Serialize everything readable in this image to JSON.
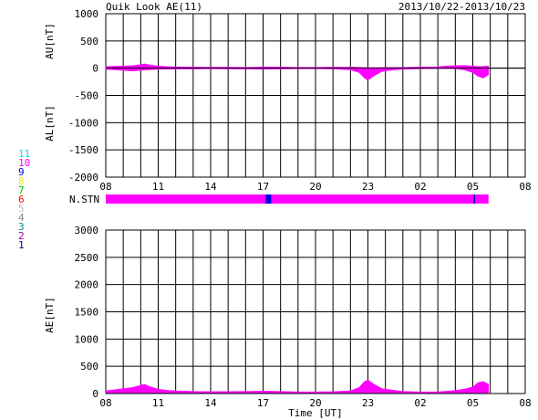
{
  "header": {
    "title": "Quik Look AE(11)",
    "date_range": "2013/10/22-2013/10/23"
  },
  "station_panel": {
    "label": "N.STN"
  },
  "legend": [
    {
      "label": "11",
      "color": "#00e5e5"
    },
    {
      "label": "10",
      "color": "#ff00ff"
    },
    {
      "label": "9",
      "color": "#0000e0"
    },
    {
      "label": "8",
      "color": "#e8e800"
    },
    {
      "label": "7",
      "color": "#00c800"
    },
    {
      "label": "6",
      "color": "#ff0000"
    },
    {
      "label": "5",
      "color": "#bbbbbb"
    },
    {
      "label": "4",
      "color": "#888888"
    },
    {
      "label": "3",
      "color": "#008b8b"
    },
    {
      "label": "2",
      "color": "#a000a0"
    },
    {
      "label": "1",
      "color": "#0000a0"
    }
  ],
  "chart_data": [
    {
      "type": "area",
      "title": "",
      "ylabel_top": "AU[nT]",
      "ylabel_bottom": "AL[nT]",
      "xlabel": "",
      "x_tick_labels": [
        "08",
        "11",
        "14",
        "17",
        "20",
        "23",
        "02",
        "05",
        "08"
      ],
      "ylim": [
        -2000,
        1000
      ],
      "y_ticks": [
        1000,
        500,
        0,
        -500,
        -1000,
        -1500,
        -2000
      ],
      "grid": true,
      "x_range_hours": [
        0,
        24
      ],
      "data_end_hour": 21.9,
      "series": [
        {
          "name": "AU",
          "color": "#ff00ff",
          "x": [
            0,
            0.5,
            1,
            1.5,
            2,
            2.2,
            2.5,
            3,
            3.5,
            4,
            5,
            6,
            7,
            8,
            9,
            10,
            11,
            12,
            13,
            14,
            15,
            16,
            17,
            18,
            19,
            19.5,
            20,
            20.5,
            21,
            21.4,
            21.9
          ],
          "values": [
            30,
            35,
            40,
            45,
            65,
            80,
            60,
            40,
            30,
            25,
            20,
            18,
            18,
            15,
            20,
            20,
            15,
            15,
            18,
            20,
            10,
            12,
            15,
            20,
            25,
            40,
            45,
            50,
            40,
            30,
            40
          ]
        },
        {
          "name": "AL",
          "color": "#ff00ff",
          "x": [
            0,
            0.5,
            1,
            1.5,
            2,
            2.5,
            3,
            3.5,
            4,
            5,
            6,
            7,
            8,
            9,
            10,
            11,
            12,
            13,
            14,
            14.5,
            14.8,
            15,
            15.3,
            15.8,
            16.5,
            17,
            18,
            19,
            20,
            20.5,
            21,
            21.3,
            21.6,
            21.9
          ],
          "values": [
            -20,
            -30,
            -40,
            -50,
            -40,
            -30,
            -20,
            -20,
            -15,
            -15,
            -12,
            -15,
            -15,
            -20,
            -15,
            -10,
            -10,
            -15,
            -30,
            -80,
            -180,
            -220,
            -150,
            -60,
            -30,
            -20,
            -10,
            -5,
            -10,
            -30,
            -80,
            -150,
            -180,
            -120
          ]
        }
      ]
    },
    {
      "type": "area",
      "title": "",
      "ylabel": "AE[nT]",
      "xlabel": "Time [UT]",
      "x_tick_labels": [
        "08",
        "11",
        "14",
        "17",
        "20",
        "23",
        "02",
        "05",
        "08"
      ],
      "ylim": [
        0,
        3000
      ],
      "y_ticks": [
        3000,
        2500,
        2000,
        1500,
        1000,
        500,
        0
      ],
      "grid": true,
      "x_range_hours": [
        0,
        24
      ],
      "data_end_hour": 21.9,
      "series": [
        {
          "name": "AE",
          "color": "#ff00ff",
          "x": [
            0,
            0.5,
            1,
            1.5,
            2,
            2.2,
            2.5,
            3,
            3.5,
            4,
            5,
            6,
            7,
            8,
            9,
            10,
            11,
            12,
            13,
            14,
            14.5,
            14.8,
            15,
            15.3,
            15.8,
            16.5,
            17,
            18,
            19,
            20,
            20.5,
            21,
            21.3,
            21.6,
            21.9
          ],
          "values": [
            50,
            70,
            90,
            110,
            150,
            170,
            130,
            80,
            60,
            50,
            40,
            35,
            35,
            40,
            45,
            40,
            30,
            30,
            35,
            50,
            110,
            220,
            250,
            180,
            90,
            60,
            40,
            30,
            30,
            55,
            80,
            120,
            200,
            220,
            170
          ]
        }
      ]
    }
  ]
}
